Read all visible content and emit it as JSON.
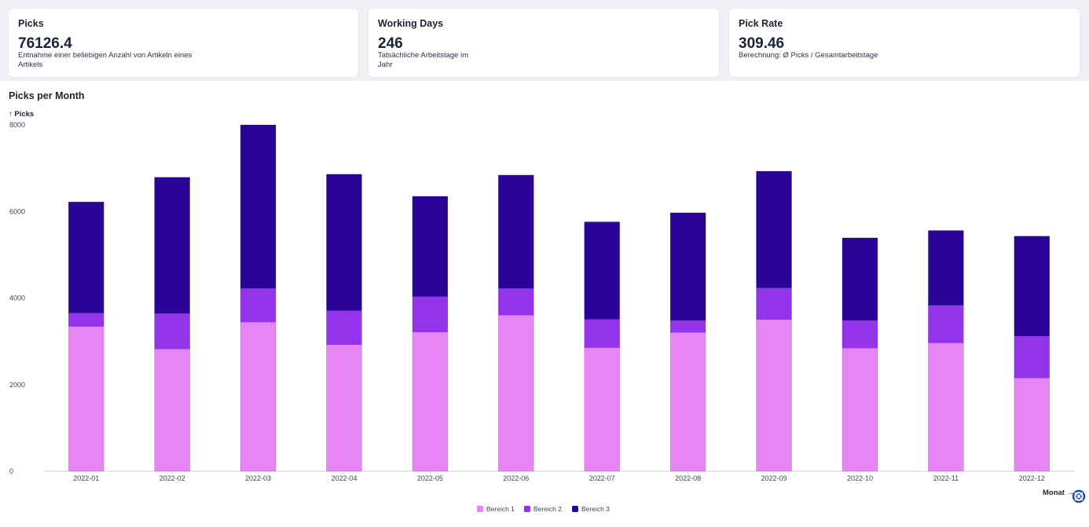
{
  "kpis": [
    {
      "title": "Picks",
      "value": "76126.4",
      "desc": "Entnahme einer beliebigen Anzahl von Artikeln eines Artikels"
    },
    {
      "title": "Working Days",
      "value": "246",
      "desc": "Tatsächliche Arbeitstage im Jahr"
    },
    {
      "title": "Pick Rate",
      "value": "309.46",
      "desc": "Berechnung: Ø Picks / Gesamtarbeitstage"
    }
  ],
  "chart_title": "Picks per Month",
  "chart_data": {
    "type": "bar",
    "stacked": true,
    "title": "Picks per Month",
    "ylabel": "↑ Picks",
    "xlabel": "Monat →",
    "ylim": [
      0,
      8000
    ],
    "yticks": [
      0,
      2000,
      4000,
      6000,
      8000
    ],
    "grid": false,
    "legend_position": "bottom-center",
    "categories": [
      "2022-01",
      "2022-02",
      "2022-03",
      "2022-04",
      "2022-05",
      "2022-06",
      "2022-07",
      "2022-08",
      "2022-09",
      "2022-10",
      "2022-11",
      "2022-12"
    ],
    "series": [
      {
        "name": "Bereich 1",
        "color": "#e885f5",
        "values": [
          3340,
          2820,
          3440,
          2920,
          3210,
          3600,
          2850,
          3200,
          3500,
          2840,
          2960,
          2150
        ]
      },
      {
        "name": "Bereich 2",
        "color": "#9333ea",
        "values": [
          310,
          820,
          780,
          790,
          820,
          620,
          660,
          280,
          730,
          640,
          870,
          970
        ]
      },
      {
        "name": "Bereich 3",
        "color": "#2a0496",
        "values": [
          2570,
          3150,
          3780,
          3150,
          2320,
          2620,
          2250,
          2490,
          2700,
          1910,
          1730,
          2310
        ]
      }
    ]
  }
}
